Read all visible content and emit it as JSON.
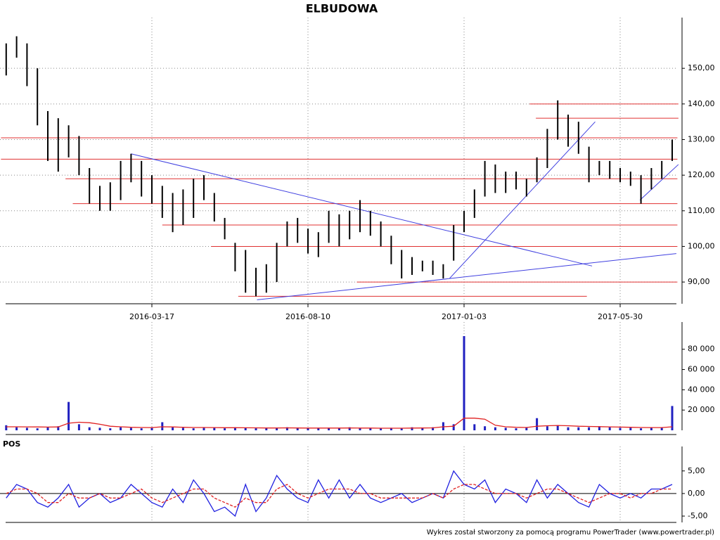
{
  "chart_data": [
    {
      "type": "hilo",
      "title": "ELBUDOWA",
      "color": "#000000",
      "high": [
        157,
        159,
        157,
        150,
        138,
        136,
        134,
        131,
        122,
        117,
        118,
        124,
        126,
        124,
        120,
        117,
        115,
        116,
        119,
        120,
        115,
        108,
        101,
        99,
        94,
        95,
        101,
        107,
        108,
        105,
        104,
        110,
        109,
        110,
        113,
        110,
        107,
        103,
        99,
        97,
        96,
        96,
        95,
        106,
        110,
        116,
        124,
        123,
        121,
        121,
        119,
        125,
        133,
        141,
        137,
        135,
        128,
        124,
        124,
        122,
        121,
        120,
        122,
        124,
        130
      ],
      "low": [
        148,
        153,
        145,
        134,
        124,
        121,
        125,
        120,
        112,
        110,
        110,
        113,
        118,
        114,
        112,
        108,
        104,
        106,
        108,
        113,
        107,
        102,
        93,
        87,
        86,
        87,
        90,
        100,
        101,
        98,
        97,
        101,
        100,
        102,
        104,
        103,
        100,
        95,
        91,
        92,
        93,
        92,
        91,
        96,
        104,
        108,
        114,
        115,
        115,
        116,
        114,
        118,
        122,
        130,
        128,
        126,
        118,
        120,
        119,
        118,
        117,
        112,
        116,
        119,
        124
      ],
      "ylim": [
        83.9,
        160.3
      ],
      "yticks": [
        {
          "value": 90,
          "label": "90,00"
        },
        {
          "value": 100,
          "label": "100,00"
        },
        {
          "value": 110,
          "label": "110,00"
        },
        {
          "value": 120,
          "label": "120,00"
        },
        {
          "value": 130,
          "label": "130,00"
        },
        {
          "value": 140,
          "label": "140,00"
        },
        {
          "value": 150,
          "label": "150,00"
        }
      ],
      "xticks": [
        {
          "value": 14,
          "label": "2016-03-17"
        },
        {
          "value": 29,
          "label": "2016-08-10"
        },
        {
          "value": 44,
          "label": "2017-01-03"
        },
        {
          "value": 59,
          "label": "2017-05-30"
        }
      ],
      "grid": true,
      "levels": [
        {
          "value": 130.5,
          "from": -0.5,
          "to": 64.5
        },
        {
          "value": 124.5,
          "from": -0.5,
          "to": 64.5
        },
        {
          "value": 119,
          "from": 5.7,
          "to": 64.5
        },
        {
          "value": 112,
          "from": 6.4,
          "to": 64.5
        },
        {
          "value": 106,
          "from": 15,
          "to": 64.5
        },
        {
          "value": 100,
          "from": 19.7,
          "to": 64.5
        },
        {
          "value": 90,
          "from": 33.7,
          "to": 64.5
        },
        {
          "value": 86,
          "from": 22.3,
          "to": 55.8
        },
        {
          "value": 140,
          "from": 50.3,
          "to": 64.6
        },
        {
          "value": 136,
          "from": 50.9,
          "to": 64.6
        }
      ],
      "level_color": "#e03030",
      "trendlines": [
        {
          "from": [
            12,
            126
          ],
          "to": [
            56.3,
            94.5
          ]
        },
        {
          "from": [
            24.1,
            85
          ],
          "to": [
            64.4,
            98
          ]
        },
        {
          "from": [
            42.6,
            91
          ],
          "to": [
            56.6,
            135
          ]
        },
        {
          "from": [
            60.9,
            113
          ],
          "to": [
            64.6,
            123
          ]
        }
      ],
      "trend_color": "#4040e0"
    },
    {
      "type": "bar",
      "series": [
        {
          "color": "#2020c0",
          "values": [
            5000,
            3000,
            2500,
            2000,
            3000,
            4000,
            28000,
            6000,
            3000,
            2500,
            2000,
            3000,
            2500,
            2000,
            2500,
            8000,
            3000,
            2500,
            2000,
            3000,
            2500,
            2000,
            3000,
            2500,
            2000,
            2000,
            2500,
            3000,
            2000,
            2000,
            2000,
            2500,
            2000,
            3000,
            2000,
            2000,
            2000,
            2500,
            2000,
            3000,
            2500,
            3000,
            8000,
            6000,
            93000,
            6000,
            4000,
            3000,
            2500,
            2000,
            3000,
            12000,
            4000,
            5000,
            3000,
            3000,
            3000,
            4000,
            3000,
            2500,
            2500,
            2000,
            2500,
            3000,
            24000
          ]
        },
        {
          "color": "#e02020",
          "values": [
            3500,
            3500,
            3400,
            3300,
            3200,
            3300,
            7000,
            8000,
            7500,
            6000,
            4000,
            3500,
            3000,
            2800,
            2700,
            3500,
            3300,
            3000,
            2800,
            2800,
            2700,
            2600,
            2600,
            2500,
            2400,
            2300,
            2300,
            2400,
            2300,
            2200,
            2200,
            2200,
            2200,
            2300,
            2200,
            2200,
            2100,
            2100,
            2100,
            2200,
            2300,
            2400,
            3500,
            4000,
            12000,
            12000,
            11000,
            5000,
            3500,
            3000,
            2800,
            4000,
            4500,
            4800,
            4500,
            4000,
            3800,
            3600,
            3400,
            3200,
            3000,
            2800,
            2700,
            2700,
            3500
          ]
        }
      ],
      "ylim": [
        0,
        93000
      ],
      "yticks": [
        {
          "value": 20000,
          "label": "20 000"
        },
        {
          "value": 40000,
          "label": "40 000"
        },
        {
          "value": 60000,
          "label": "60 000"
        },
        {
          "value": 80000,
          "label": "80 000"
        }
      ]
    },
    {
      "type": "line",
      "title": "POS",
      "series": [
        {
          "color": "#2020e0",
          "values": [
            -1,
            2,
            1,
            -2,
            -3,
            -1,
            2,
            -3,
            -1,
            0,
            -2,
            -1,
            2,
            0,
            -2,
            -3,
            1,
            -2,
            3,
            0,
            -4,
            -3,
            -5,
            2,
            -4,
            -1,
            4,
            1,
            -1,
            -2,
            3,
            -1,
            3,
            -1,
            2,
            -1,
            -2,
            -1,
            0,
            -2,
            -1,
            0,
            -1,
            5,
            2,
            1,
            3,
            -2,
            1,
            0,
            -2,
            3,
            -1,
            2,
            0,
            -2,
            -3,
            2,
            0,
            -1,
            0,
            -1,
            1,
            1,
            2
          ]
        },
        {
          "color": "#e02020",
          "dashed": true,
          "values": [
            0,
            1,
            1,
            0,
            -2,
            -2,
            0,
            -1,
            -1,
            0,
            -1,
            -1,
            0,
            1,
            -1,
            -2,
            -1,
            0,
            1,
            1,
            -1,
            -2,
            -3,
            -1,
            -2,
            -2,
            1,
            2,
            0,
            -1,
            0,
            1,
            1,
            1,
            0,
            0,
            -1,
            -1,
            -1,
            -1,
            -1,
            0,
            -1,
            1,
            2,
            2,
            1,
            0,
            0,
            0,
            -1,
            0,
            1,
            1,
            0,
            -1,
            -2,
            -1,
            0,
            0,
            -1,
            0,
            0,
            1,
            1
          ]
        }
      ],
      "ylim": [
        -6.4,
        7.3
      ],
      "yticks": [
        {
          "value": -5,
          "label": "-5,00"
        },
        {
          "value": 0,
          "label": "0,00"
        },
        {
          "value": 5,
          "label": "5,00"
        }
      ]
    }
  ],
  "footer": "Wykres został stworzony za pomocą programu PowerTrader (www.powertrader.pl)"
}
